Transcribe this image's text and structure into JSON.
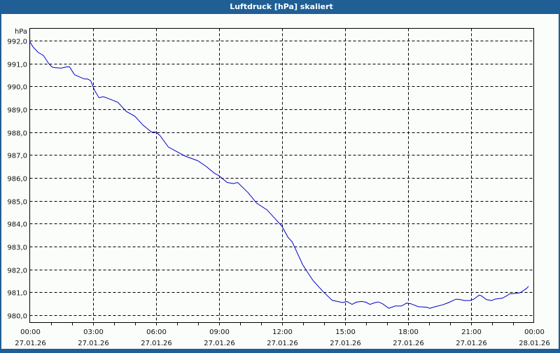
{
  "window": {
    "title": "Luftdruck [hPa] skaliert",
    "colors": {
      "titlebar": "#1f5f95",
      "background": "#fbfdfb",
      "line": "#0000c8",
      "grid": "#000000"
    }
  },
  "chart_data": {
    "type": "line",
    "title": "Luftdruck [hPa] skaliert",
    "xlabel": "",
    "ylabel": "hPa",
    "ylim": [
      979.7,
      992.5
    ],
    "xlim_hours": [
      0,
      24
    ],
    "grid": true,
    "legend": null,
    "y_ticks": [
      "980,0",
      "981,0",
      "982,0",
      "983,0",
      "984,0",
      "985,0",
      "986,0",
      "987,0",
      "988,0",
      "989,0",
      "990,0",
      "991,0",
      "992,0"
    ],
    "y_tick_values": [
      980,
      981,
      982,
      983,
      984,
      985,
      986,
      987,
      988,
      989,
      990,
      991,
      992
    ],
    "x_ticks": [
      {
        "time": "00:00",
        "date": "27.01.26",
        "hour": 0
      },
      {
        "time": "03:00",
        "date": "27.01.26",
        "hour": 3
      },
      {
        "time": "06:00",
        "date": "27.01.26",
        "hour": 6
      },
      {
        "time": "09:00",
        "date": "27.01.26",
        "hour": 9
      },
      {
        "time": "12:00",
        "date": "27.01.26",
        "hour": 12
      },
      {
        "time": "15:00",
        "date": "27.01.26",
        "hour": 15
      },
      {
        "time": "18:00",
        "date": "27.01.26",
        "hour": 18
      },
      {
        "time": "21:00",
        "date": "27.01.26",
        "hour": 21
      },
      {
        "time": "00:00",
        "date": "28.01.26",
        "hour": 24
      }
    ],
    "series": [
      {
        "name": "Luftdruck",
        "unit": "hPa",
        "x_hours": [
          0.0,
          0.15,
          0.4,
          0.65,
          0.9,
          1.05,
          1.15,
          1.5,
          1.75,
          1.9,
          2.1,
          2.15,
          2.4,
          2.6,
          2.75,
          2.9,
          3.0,
          3.1,
          3.3,
          3.5,
          3.8,
          4.2,
          4.6,
          5.0,
          5.4,
          5.8,
          6.0,
          6.2,
          6.6,
          7.0,
          7.4,
          8.0,
          8.4,
          8.8,
          9.0,
          9.4,
          9.7,
          9.9,
          10.4,
          10.8,
          11.3,
          11.7,
          12.0,
          12.3,
          12.5,
          12.8,
          13.0,
          13.25,
          13.5,
          14.0,
          14.4,
          14.9,
          15.1,
          15.35,
          15.55,
          15.8,
          16.0,
          16.2,
          16.45,
          16.6,
          16.8,
          17.1,
          17.4,
          17.7,
          17.95,
          18.15,
          18.5,
          18.9,
          19.05,
          19.3,
          19.65,
          19.95,
          20.3,
          20.5,
          20.7,
          20.95,
          21.15,
          21.4,
          21.5,
          21.75,
          22.0,
          22.15,
          22.3,
          22.5,
          22.7,
          22.85,
          23.1,
          23.35,
          23.45,
          23.65,
          23.75
        ],
        "values": [
          991.96,
          991.73,
          991.48,
          991.35,
          991.0,
          990.85,
          990.82,
          990.8,
          990.85,
          990.85,
          990.55,
          990.5,
          990.4,
          990.32,
          990.32,
          990.25,
          990.02,
          989.8,
          989.5,
          989.55,
          989.45,
          989.3,
          988.9,
          988.7,
          988.3,
          988.0,
          988.0,
          987.85,
          987.35,
          987.15,
          986.95,
          986.75,
          986.5,
          986.2,
          986.1,
          985.8,
          985.75,
          985.8,
          985.35,
          984.9,
          984.6,
          984.2,
          983.9,
          983.4,
          983.2,
          982.6,
          982.2,
          981.85,
          981.5,
          981.0,
          980.65,
          980.55,
          980.6,
          980.47,
          980.57,
          980.6,
          980.57,
          980.47,
          980.55,
          980.58,
          980.5,
          980.3,
          980.4,
          980.4,
          980.53,
          980.5,
          980.37,
          980.35,
          980.3,
          980.37,
          980.45,
          980.55,
          980.7,
          980.68,
          980.64,
          980.64,
          980.7,
          980.88,
          980.85,
          980.68,
          980.64,
          980.7,
          980.72,
          980.74,
          980.84,
          980.93,
          980.95,
          980.98,
          981.04,
          981.16,
          981.26
        ]
      }
    ]
  }
}
